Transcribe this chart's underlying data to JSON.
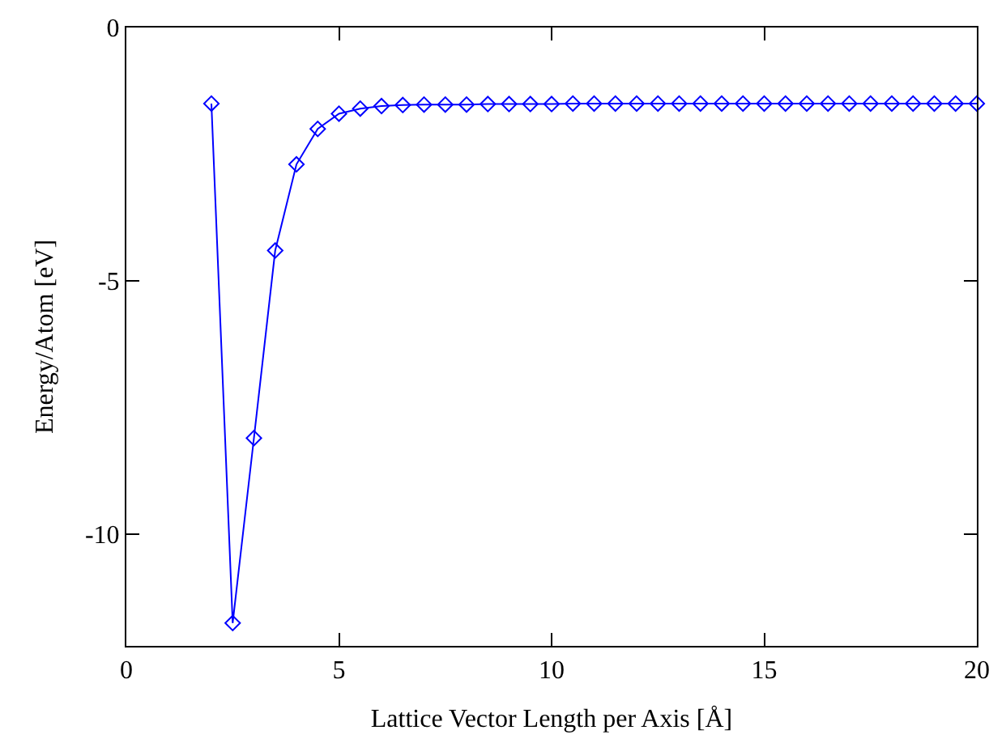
{
  "chart_data": {
    "type": "line",
    "xlabel": "Lattice Vector Length per Axis [Å]",
    "ylabel": "Energy/Atom [eV]",
    "x": [
      2,
      2.5,
      3,
      3.5,
      4,
      4.5,
      5,
      5.5,
      6,
      6.5,
      7,
      7.5,
      8,
      8.5,
      9,
      9.5,
      10,
      10.5,
      11,
      11.5,
      12,
      12.5,
      13,
      13.5,
      14,
      14.5,
      15,
      15.5,
      16,
      16.5,
      17,
      17.5,
      18,
      18.5,
      19,
      19.5,
      20
    ],
    "series": [
      {
        "color": "#0000ff",
        "values": [
          -1.5,
          -11.75,
          -8.1,
          -4.4,
          -2.7,
          -2.0,
          -1.7,
          -1.6,
          -1.55,
          -1.53,
          -1.52,
          -1.52,
          -1.52,
          -1.51,
          -1.51,
          -1.51,
          -1.51,
          -1.5,
          -1.5,
          -1.5,
          -1.5,
          -1.5,
          -1.5,
          -1.5,
          -1.5,
          -1.5,
          -1.5,
          -1.5,
          -1.5,
          -1.5,
          -1.5,
          -1.5,
          -1.5,
          -1.5,
          -1.5,
          -1.5,
          -1.5
        ]
      }
    ],
    "xlim": [
      0,
      20
    ],
    "xticks": [
      0,
      5,
      10,
      15,
      20
    ],
    "ylim": [
      -12.2,
      0
    ],
    "yticks": [
      -10,
      -5,
      0
    ],
    "marker": "diamond",
    "line_style": "solid",
    "legend": false
  }
}
